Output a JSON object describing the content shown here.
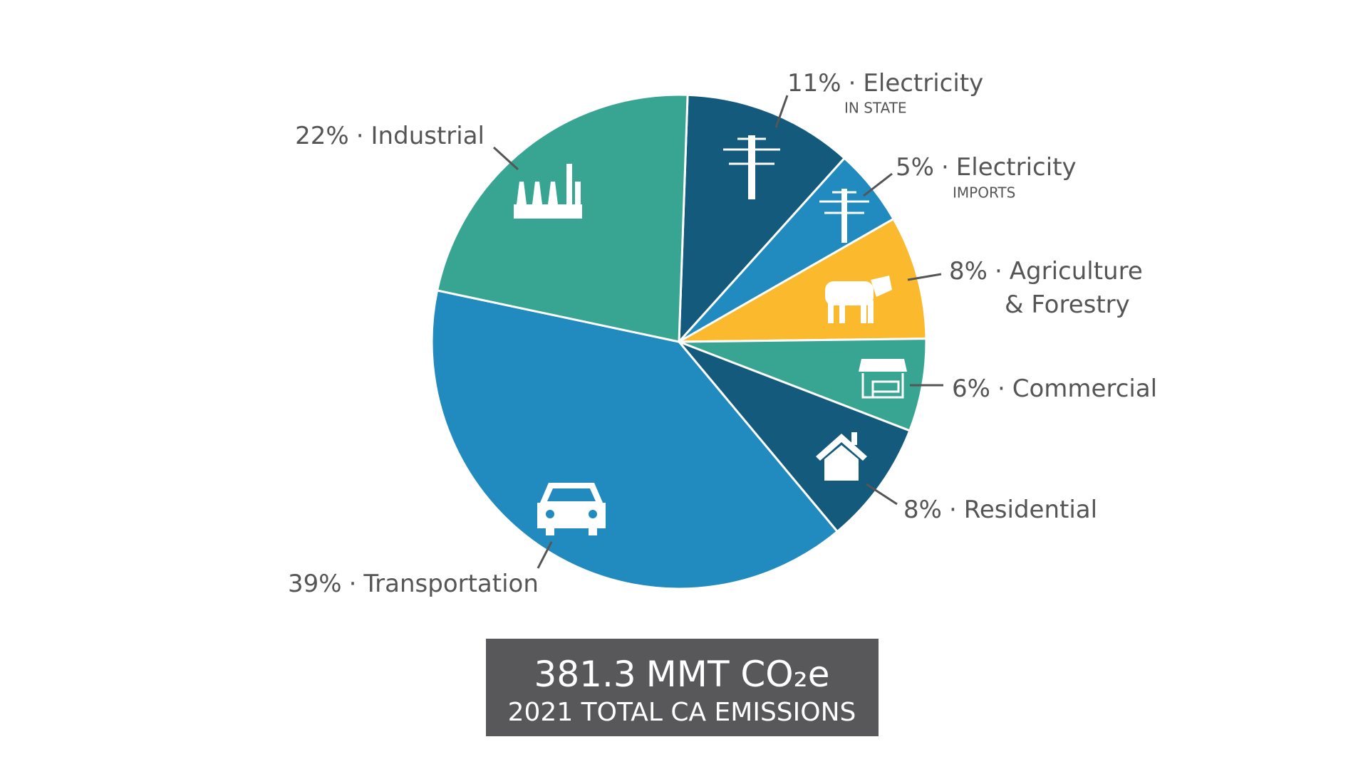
{
  "chart_data": {
    "type": "pie",
    "categories": [
      "Electricity",
      "Electricity",
      "Agriculture & Forestry",
      "Commercial",
      "Residential",
      "Transportation",
      "Industrial"
    ],
    "category_notes": [
      "IN STATE",
      "IMPORTS",
      null,
      null,
      null,
      null,
      null
    ],
    "values": [
      11,
      5,
      8,
      6,
      8,
      39,
      22
    ],
    "value_labels": [
      "11%",
      "5%",
      "8%",
      "6%",
      "8%",
      "39%",
      "22%"
    ],
    "colors": [
      "#135a7d",
      "#218bbf",
      "#fbb92d",
      "#38a592",
      "#135a7d",
      "#218bbf",
      "#38a592"
    ],
    "label_separator": "·",
    "total": 381.3,
    "total_unit": "MMT CO₂e",
    "total_caption": "2021 TOTAL CA EMISSIONS"
  }
}
